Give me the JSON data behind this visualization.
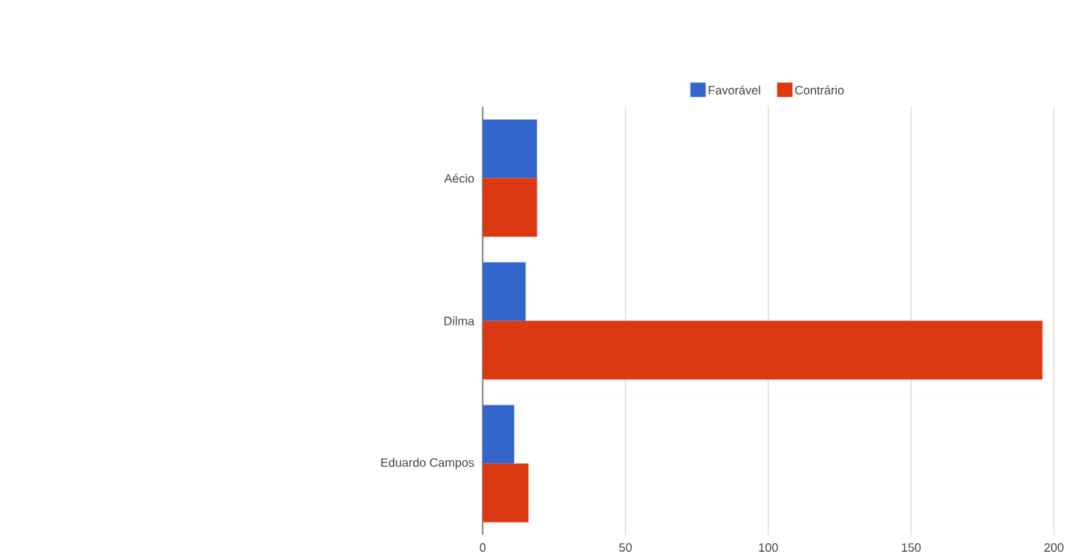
{
  "chart_data": {
    "type": "bar",
    "orientation": "horizontal",
    "categories": [
      "Aécio",
      "Dilma",
      "Eduardo Campos"
    ],
    "series": [
      {
        "name": "Favorável",
        "color": "#3366cc",
        "values": [
          19,
          15,
          11
        ]
      },
      {
        "name": "Contrário",
        "color": "#dc3912",
        "values": [
          19,
          196,
          16
        ]
      }
    ],
    "xlim": [
      0,
      200
    ],
    "xticks": [
      0,
      50,
      100,
      150,
      200
    ],
    "grid": "x",
    "legend": "top"
  }
}
